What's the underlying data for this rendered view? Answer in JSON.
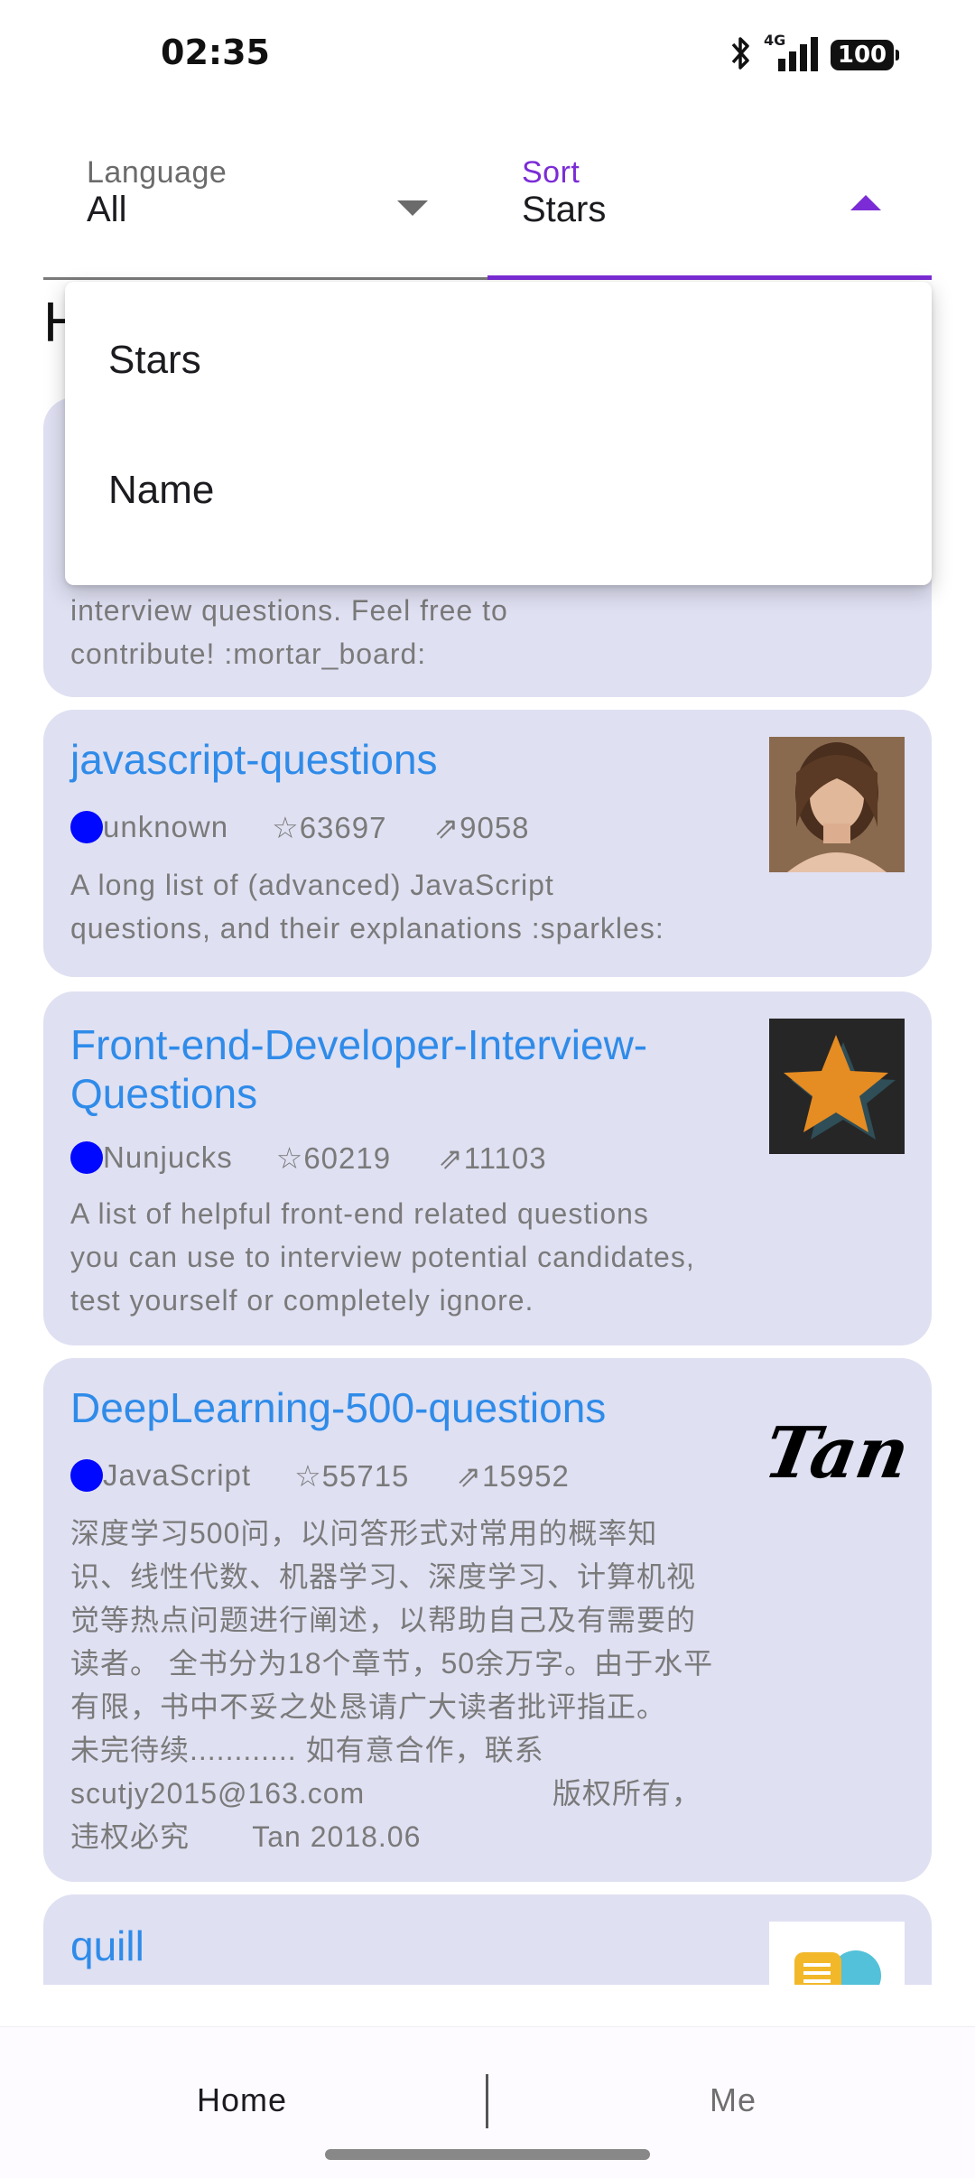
{
  "status_bar": {
    "time": "02:35",
    "network": "4G",
    "battery": "100"
  },
  "filters": {
    "language": {
      "label": "Language",
      "value": "All"
    },
    "sort": {
      "label": "Sort",
      "value": "Stars"
    }
  },
  "section_heading": "H",
  "sort_menu": {
    "options": [
      "Stars",
      "Name"
    ]
  },
  "repos": [
    {
      "title": "",
      "description": "interview questions. Feel free to\ncontribute! :mortar_board:"
    },
    {
      "title": "javascript-questions",
      "language": "unknown",
      "stars": "☆63697",
      "forks": "⇗9058",
      "description": "A long list of (advanced) JavaScript\nquestions, and their explanations :sparkles:",
      "thumb": "avatar-photo"
    },
    {
      "title": "Front-end-Developer-Interview-Questions",
      "language": "Nunjucks",
      "stars": "☆60219",
      "forks": "⇗11103",
      "description": "A list of helpful front-end related questions\nyou can use to interview potential candidates,\ntest yourself or completely ignore.",
      "thumb": "star-logo"
    },
    {
      "title": "DeepLearning-500-questions",
      "language": "JavaScript",
      "stars": "☆55715",
      "forks": "⇗15952",
      "description": "深度学习500问，以问答形式对常用的概率知\n识、线性代数、机器学习、深度学习、计算机视\n觉等热点问题进行阐述，以帮助自己及有需要的\n读者。 全书分为18个章节，50余万字。由于水平\n有限，书中不妥之处恳请广大读者批评指正。\n未完待续............ 如有意合作，联系\nscutjy2015@163.com                     版权所有，\n违权必究       Tan 2018.06",
      "thumb_text": "Tan"
    },
    {
      "title": "quill",
      "thumb": "quill-logo"
    }
  ],
  "bottom_nav": {
    "home": "Home",
    "me": "Me"
  },
  "colors": {
    "accent": "#7b2cd6",
    "card_bg": "#dfe0f2",
    "link": "#2f8be9",
    "lang_dot": "#0008ff"
  }
}
